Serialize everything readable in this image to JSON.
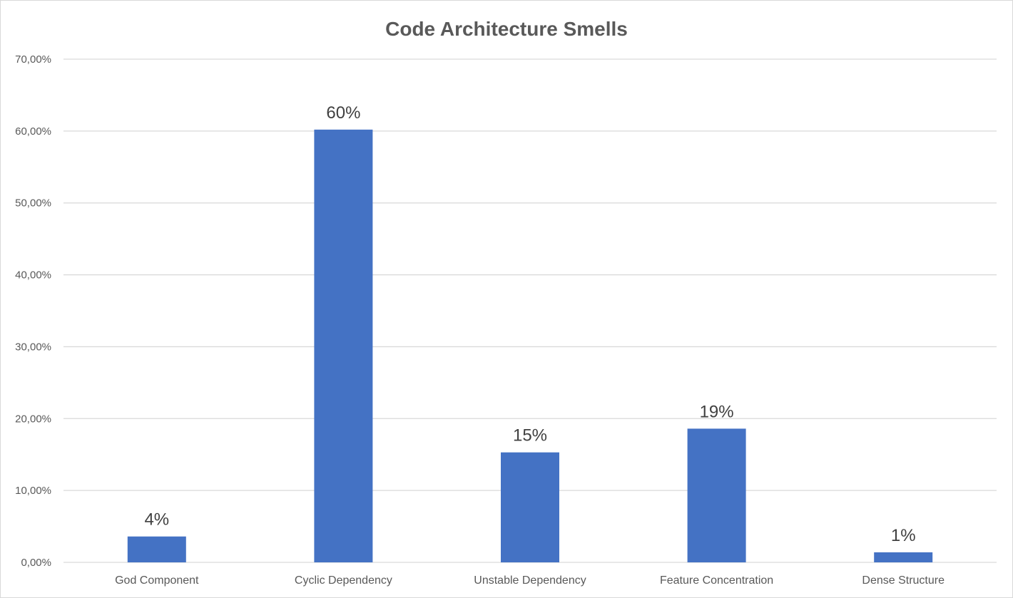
{
  "chart_data": {
    "type": "bar",
    "title": "Code Architecture Smells",
    "xlabel": "",
    "ylabel": "",
    "categories": [
      "God Component",
      "Cyclic Dependency",
      "Unstable Dependency",
      "Feature Concentration",
      "Dense Structure"
    ],
    "values": [
      3.6,
      60.2,
      15.3,
      18.6,
      1.4
    ],
    "data_labels": [
      "4%",
      "60%",
      "15%",
      "19%",
      "1%"
    ],
    "ylim": [
      0,
      70
    ],
    "yticks": [
      0,
      10,
      20,
      30,
      40,
      50,
      60,
      70
    ],
    "ytick_labels": [
      "0,00%",
      "10,00%",
      "20,00%",
      "30,00%",
      "40,00%",
      "50,00%",
      "60,00%",
      "70,00%"
    ],
    "grid": true,
    "legend": "none",
    "colors": {
      "bar": "#4472c4",
      "gridline": "#d9d9d9",
      "title": "#595959",
      "tick_label": "#595959",
      "data_label": "#404040"
    }
  }
}
